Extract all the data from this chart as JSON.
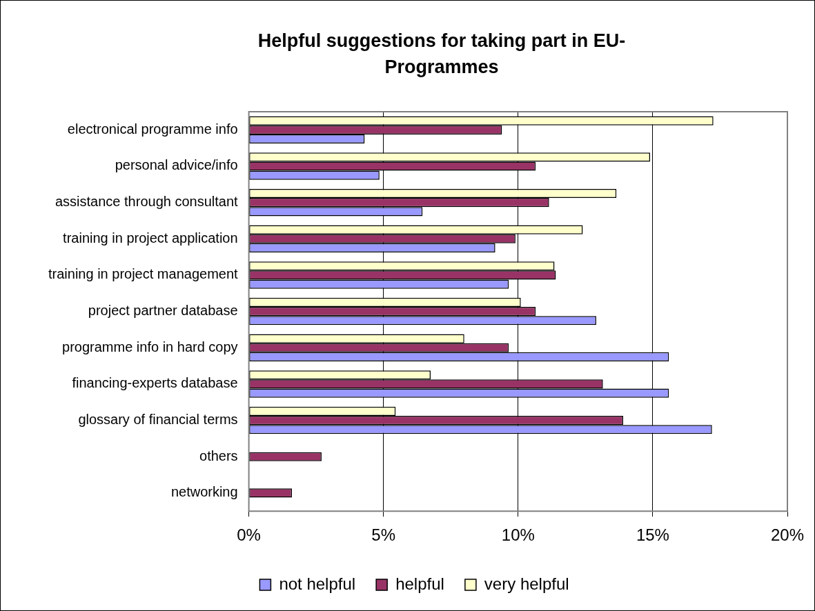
{
  "chart_data": {
    "type": "bar",
    "orientation": "horizontal",
    "title": "Helpful suggestions for taking part in EU-Programmes",
    "categories": [
      "electronical programme info",
      "personal advice/info",
      "assistance through consultant",
      "training in project application",
      "training in project management",
      "project partner database",
      "programme info in hard copy",
      "financing-experts database",
      "glossary of financial terms",
      "others",
      "networking"
    ],
    "series": [
      {
        "name": "not helpful",
        "color": "#9999ff",
        "values": [
          4.3,
          4.85,
          6.45,
          9.15,
          9.65,
          12.9,
          15.6,
          15.6,
          17.2,
          null,
          null
        ]
      },
      {
        "name": "helpful",
        "color": "#993366",
        "values": [
          9.4,
          10.65,
          11.15,
          9.9,
          11.4,
          10.65,
          9.65,
          13.15,
          13.9,
          2.7,
          1.6
        ]
      },
      {
        "name": "very helpful",
        "color": "#ffffcc",
        "values": [
          17.25,
          14.9,
          13.65,
          12.4,
          11.35,
          10.1,
          8.0,
          6.75,
          5.45,
          null,
          null
        ]
      }
    ],
    "xlim": [
      0,
      20
    ],
    "xticks": [
      {
        "value": 0,
        "label": "0%"
      },
      {
        "value": 5,
        "label": "5%"
      },
      {
        "value": 10,
        "label": "10%"
      },
      {
        "value": 15,
        "label": "15%"
      },
      {
        "value": 20,
        "label": "20%"
      }
    ],
    "grid": "x",
    "legend": "bottom"
  }
}
